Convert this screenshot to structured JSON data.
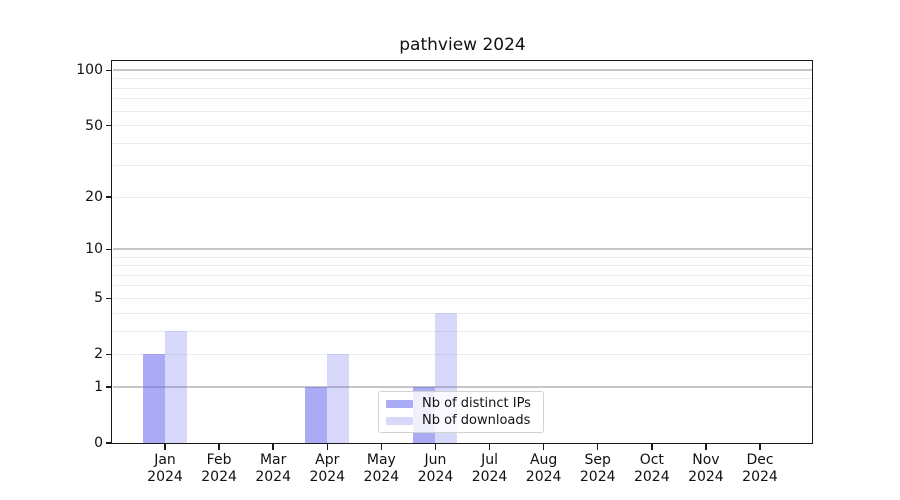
{
  "chart_data": {
    "type": "bar",
    "title": "pathview 2024",
    "categories": [
      "Jan",
      "Feb",
      "Mar",
      "Apr",
      "May",
      "Jun",
      "Jul",
      "Aug",
      "Sep",
      "Oct",
      "Nov",
      "Dec"
    ],
    "xtick_year": "2024",
    "series": [
      {
        "name": "Nb of distinct IPs",
        "color": "#6565ed",
        "fill_opacity": 0.55,
        "values": [
          2,
          0,
          0,
          1,
          0,
          1,
          0,
          0,
          0,
          0,
          0,
          0
        ]
      },
      {
        "name": "Nb of downloads",
        "color": "#6565ed",
        "fill_opacity": 0.25,
        "values": [
          3,
          0,
          0,
          2,
          0,
          4,
          0,
          0,
          0,
          0,
          0,
          0
        ]
      }
    ],
    "yscale": "log1p",
    "yticks": [
      0,
      1,
      2,
      5,
      10,
      20,
      50,
      100
    ],
    "ylim": [
      0,
      111
    ],
    "grid": {
      "on": true,
      "minor_color": "#ececec",
      "major_color": "#c6c6c6",
      "major_values": [
        1,
        10,
        100
      ],
      "minor_values": [
        2,
        3,
        4,
        5,
        6,
        7,
        8,
        9,
        20,
        30,
        40,
        50,
        60,
        70,
        80,
        90
      ]
    },
    "legend": {
      "position": "lower-center",
      "frame": true
    }
  }
}
